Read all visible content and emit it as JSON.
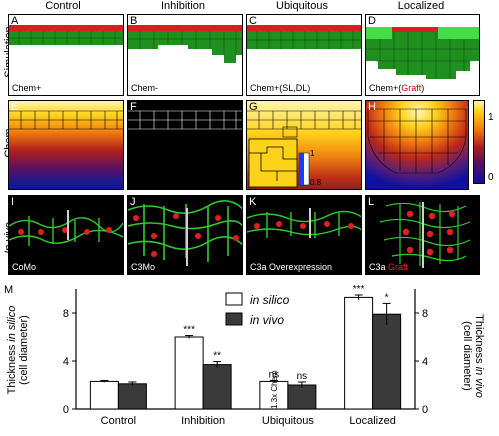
{
  "columns": [
    "Control",
    "Inhibition",
    "Ubiquitous",
    "Localized"
  ],
  "rows": {
    "simulation": "Simulation",
    "chem": "Chem",
    "invivo": "In vivo"
  },
  "panels": {
    "A": {
      "letter": "A",
      "caption": "Chem+"
    },
    "B": {
      "letter": "B",
      "caption": "Chem-"
    },
    "C": {
      "letter": "C",
      "caption": "Chem+(SL,DL)"
    },
    "D": {
      "letter": "D",
      "caption_main": "Chem+(",
      "caption_graft": "Graft",
      "caption_end": ")"
    },
    "E": {
      "letter": "E"
    },
    "F": {
      "letter": "F"
    },
    "G": {
      "letter": "G",
      "inset_max": "1",
      "inset_min": "0.8"
    },
    "H": {
      "letter": "H"
    },
    "I": {
      "letter": "I",
      "caption": "CoMo"
    },
    "J": {
      "letter": "J",
      "caption": "C3Mo"
    },
    "K": {
      "letter": "K",
      "caption": "C3a Overexpression"
    },
    "L": {
      "letter": "L",
      "caption_a": "C3a ",
      "caption_b": "Graft"
    }
  },
  "colorbar": {
    "max": "1",
    "min": "0"
  },
  "colors": {
    "sim_red": "#d81e1e",
    "sim_green": "#1f8f1f",
    "graft_green": "#44dd44",
    "in_silico": "#ffffff",
    "in_vivo": "#3a3a3a",
    "graft_text": "#cc0000"
  },
  "chart_data": {
    "letter": "M",
    "type": "bar",
    "categories": [
      "Control",
      "Inhibition",
      "Ubiquitous",
      "Localized"
    ],
    "series": [
      {
        "name": "in silico",
        "values": [
          2.3,
          6.0,
          2.3,
          9.3
        ],
        "errors": [
          0.08,
          0.12,
          0.08,
          0.2
        ]
      },
      {
        "name": "in vivo",
        "values": [
          2.1,
          3.7,
          2.0,
          7.9
        ],
        "errors": [
          0.15,
          0.25,
          0.25,
          0.9
        ]
      }
    ],
    "significance": {
      "in silico": [
        "",
        "***",
        "ns",
        "***"
      ],
      "in vivo": [
        "",
        "**",
        "ns",
        "*"
      ]
    },
    "ylabel_left_a": "Thickness ",
    "ylabel_left_b": "in silico",
    "ylabel_left_c": "(cell diameter)",
    "ylabel_right_a": "Thickness ",
    "ylabel_right_b": "in vivo",
    "ylabel_right_c": "(cell diameter)",
    "yticks": [
      0,
      4,
      8
    ],
    "ylim": [
      0,
      10
    ],
    "bar_annotation": "1.3x Chem",
    "legend": {
      "in_silico": "in silico",
      "in_vivo": "in vivo"
    }
  }
}
